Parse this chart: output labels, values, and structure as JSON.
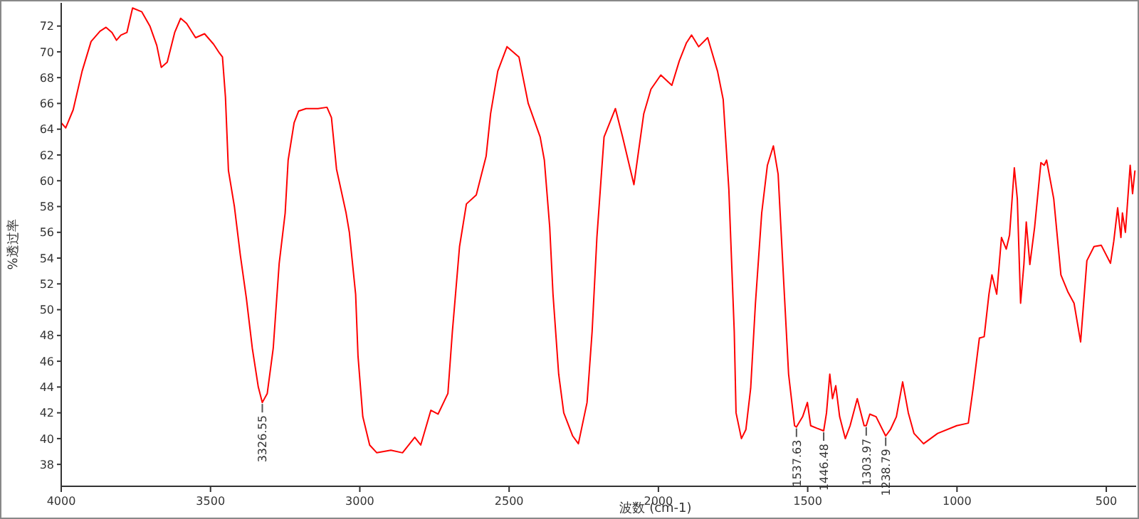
{
  "chart_data": {
    "type": "line",
    "xlabel": "波数 (cm-1)",
    "ylabel": "%透过率",
    "xlim": [
      4000,
      400
    ],
    "ylim": [
      36.3,
      73.8
    ],
    "xticks": [
      4000,
      3500,
      3000,
      2500,
      2000,
      1500,
      1000,
      500
    ],
    "yticks": [
      38,
      40,
      42,
      44,
      46,
      48,
      50,
      52,
      54,
      56,
      58,
      60,
      62,
      64,
      66,
      68,
      70,
      72
    ],
    "grid": false,
    "marker": "none",
    "line_style": "solid",
    "series": [
      {
        "color": "#ff0000",
        "x": [
          4000,
          3985,
          3960,
          3930,
          3900,
          3870,
          3850,
          3830,
          3815,
          3800,
          3780,
          3770,
          3761,
          3730,
          3703,
          3680,
          3665,
          3645,
          3620,
          3600,
          3580,
          3550,
          3520,
          3490,
          3470,
          3460,
          3450,
          3440,
          3420,
          3400,
          3380,
          3360,
          3340,
          3326.55,
          3310,
          3290,
          3270,
          3250,
          3240,
          3220,
          3205,
          3180,
          3140,
          3110,
          3095,
          3078,
          3046,
          3035,
          3014,
          3006,
          2990,
          2967,
          2943,
          2896,
          2857,
          2816,
          2796,
          2762,
          2738,
          2705,
          2690,
          2666,
          2643,
          2610,
          2577,
          2562,
          2538,
          2507,
          2467,
          2436,
          2396,
          2382,
          2364,
          2353,
          2334,
          2317,
          2287,
          2268,
          2239,
          2222,
          2206,
          2182,
          2144,
          2120,
          2082,
          2049,
          2025,
          1992,
          1955,
          1930,
          1906,
          1889,
          1865,
          1835,
          1802,
          1783,
          1764,
          1746,
          1740,
          1722,
          1707,
          1691,
          1675,
          1654,
          1635,
          1615,
          1599,
          1580,
          1564,
          1544,
          1537.63,
          1517,
          1501,
          1490,
          1469,
          1446.48,
          1437,
          1426,
          1417,
          1406,
          1393,
          1374,
          1358,
          1334,
          1311,
          1303.97,
          1292,
          1271,
          1238.79,
          1223,
          1203,
          1182,
          1163,
          1144,
          1112,
          1065,
          1001,
          962,
          946,
          925,
          909,
          893,
          883,
          867,
          851,
          835,
          824,
          808,
          798,
          787,
          776,
          768,
          756,
          740,
          719,
          708,
          700,
          676,
          652,
          629,
          608,
          586,
          565,
          541,
          517,
          486,
          475,
          462,
          451,
          446,
          436,
          420,
          412,
          404
        ],
        "values": [
          64.5,
          64.1,
          65.5,
          68.5,
          70.8,
          71.6,
          71.9,
          71.5,
          70.9,
          71.3,
          71.5,
          72.5,
          73.4,
          73.1,
          72.0,
          70.5,
          68.8,
          69.2,
          71.5,
          72.6,
          72.2,
          71.1,
          71.4,
          70.6,
          69.9,
          69.6,
          66.5,
          60.8,
          58.0,
          54.2,
          50.9,
          47.0,
          44.0,
          42.8,
          43.5,
          47.0,
          53.6,
          57.5,
          61.6,
          64.5,
          65.4,
          65.6,
          65.6,
          65.7,
          64.9,
          60.9,
          57.5,
          56.0,
          51.2,
          46.4,
          41.7,
          39.5,
          38.9,
          39.1,
          38.9,
          40.1,
          39.5,
          42.2,
          41.9,
          43.5,
          48.3,
          54.9,
          58.2,
          58.9,
          61.9,
          65.2,
          68.5,
          70.4,
          69.6,
          66.0,
          63.4,
          61.6,
          56.4,
          51.2,
          45.0,
          42.0,
          40.2,
          39.6,
          42.8,
          48.3,
          55.6,
          63.4,
          65.6,
          63.4,
          59.7,
          65.2,
          67.1,
          68.2,
          67.4,
          69.3,
          70.7,
          71.3,
          70.4,
          71.1,
          68.5,
          66.3,
          59.3,
          48.3,
          42.0,
          40.0,
          40.7,
          43.9,
          50.5,
          57.5,
          61.2,
          62.7,
          60.5,
          52.0,
          45.0,
          41.0,
          40.9,
          41.7,
          42.8,
          41.0,
          40.8,
          40.6,
          42.0,
          45.0,
          43.1,
          44.1,
          41.7,
          40.0,
          41.0,
          43.1,
          41.0,
          41.0,
          41.9,
          41.7,
          40.2,
          40.7,
          41.7,
          44.4,
          42.0,
          40.4,
          39.6,
          40.4,
          41.0,
          41.2,
          43.9,
          47.8,
          47.9,
          51.2,
          52.7,
          51.2,
          55.6,
          54.7,
          55.8,
          61.0,
          58.6,
          50.5,
          53.5,
          56.8,
          53.5,
          56.4,
          61.4,
          61.2,
          61.6,
          58.6,
          52.7,
          51.4,
          50.5,
          47.5,
          53.8,
          54.9,
          55.0,
          53.6,
          55.3,
          57.9,
          55.6,
          57.5,
          56.0,
          61.2,
          59.0,
          60.8
        ]
      }
    ],
    "annotations": [
      {
        "text": "3326.55",
        "x": 3326.55,
        "y": 42.8
      },
      {
        "text": "1537.63",
        "x": 1537.63,
        "y": 40.9
      },
      {
        "text": "1446.48",
        "x": 1446.48,
        "y": 40.6
      },
      {
        "text": "1303.97",
        "x": 1303.97,
        "y": 41.0
      },
      {
        "text": "1238.79",
        "x": 1238.79,
        "y": 40.2
      }
    ]
  }
}
